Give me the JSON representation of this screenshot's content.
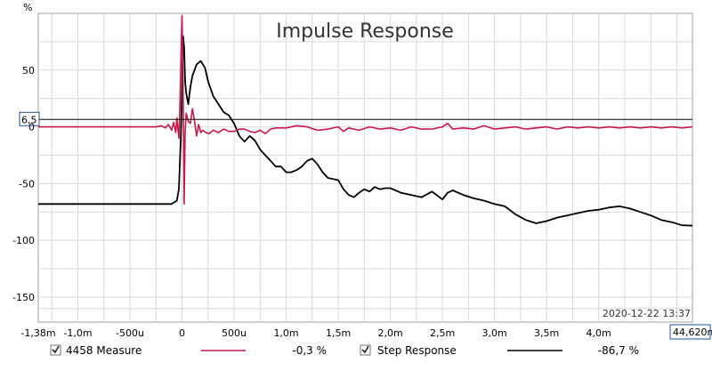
{
  "ylabel_unit": "%",
  "timestamp": "2020-12-22 13:37",
  "cursor": {
    "y_label": "6,5",
    "y_value": 6.5,
    "x_label": "44,620m"
  },
  "colors": {
    "measure": "#c8184a",
    "step": "#000000",
    "cursor_line": "#000000"
  },
  "legend": [
    {
      "checked": true,
      "name": "4458 Measure",
      "value": "-0,3 %",
      "color": "#c8184a"
    },
    {
      "checked": true,
      "name": "Step Response",
      "value": "-86,7 %",
      "color": "#000000"
    }
  ],
  "chart_data": {
    "type": "line",
    "title": "Impulse Response",
    "xlabel": "",
    "ylabel": "%",
    "xlim": [
      -1.38,
      4.9
    ],
    "ylim": [
      -172,
      100
    ],
    "grid": true,
    "y_ticks": [
      {
        "value": 50,
        "label": "50"
      },
      {
        "value": 0,
        "label": "0"
      },
      {
        "value": -50,
        "label": "-50"
      },
      {
        "value": -100,
        "label": "-100"
      },
      {
        "value": -150,
        "label": "-150"
      }
    ],
    "x_ticks": [
      {
        "value": -1.38,
        "label": "-1,38m"
      },
      {
        "value": -1.0,
        "label": "-1,0m"
      },
      {
        "value": -0.5,
        "label": "-500u"
      },
      {
        "value": 0,
        "label": "0"
      },
      {
        "value": 0.5,
        "label": "500u"
      },
      {
        "value": 1.0,
        "label": "1,0m"
      },
      {
        "value": 1.5,
        "label": "1,5m"
      },
      {
        "value": 2.0,
        "label": "2,0m"
      },
      {
        "value": 2.5,
        "label": "2,5m"
      },
      {
        "value": 3.0,
        "label": "3,0m"
      },
      {
        "value": 3.5,
        "label": "3,5m"
      },
      {
        "value": 4.0,
        "label": "4,0m"
      }
    ],
    "x_minor_grid": [
      -1.25,
      -0.75,
      -0.25,
      0.25,
      0.75,
      1.25,
      1.75,
      2.25,
      2.75,
      3.25,
      3.75,
      4.25,
      4.5,
      4.75
    ],
    "y_minor_grid": [
      75,
      25,
      -25,
      -75,
      -125,
      -160
    ],
    "series": [
      {
        "name": "4458 Measure",
        "x": [
          -1.38,
          -0.25,
          -0.2,
          -0.16,
          -0.13,
          -0.1,
          -0.08,
          -0.06,
          -0.05,
          -0.03,
          -0.02,
          -0.01,
          0.0,
          0.01,
          0.02,
          0.03,
          0.04,
          0.06,
          0.08,
          0.1,
          0.12,
          0.14,
          0.16,
          0.18,
          0.2,
          0.23,
          0.26,
          0.3,
          0.35,
          0.4,
          0.45,
          0.5,
          0.55,
          0.6,
          0.65,
          0.7,
          0.75,
          0.8,
          0.85,
          0.9,
          1.0,
          1.1,
          1.2,
          1.3,
          1.4,
          1.5,
          1.55,
          1.6,
          1.7,
          1.8,
          1.9,
          2.0,
          2.1,
          2.2,
          2.3,
          2.4,
          2.5,
          2.55,
          2.6,
          2.7,
          2.8,
          2.9,
          3.0,
          3.1,
          3.2,
          3.3,
          3.4,
          3.5,
          3.6,
          3.7,
          3.8,
          3.9,
          4.0,
          4.1,
          4.2,
          4.3,
          4.4,
          4.5,
          4.6,
          4.7,
          4.8,
          4.9
        ],
        "values": [
          0,
          0,
          1,
          -1,
          2,
          -3,
          4,
          -5,
          8,
          -10,
          20,
          60,
          98,
          40,
          -68,
          -5,
          12,
          5,
          3,
          16,
          5,
          -8,
          2,
          -5,
          -3,
          -5,
          -6,
          -3,
          -5,
          -2,
          -4,
          -4,
          -2,
          -2,
          -4,
          -5,
          -3,
          -6,
          -2,
          -1,
          -1,
          1,
          0,
          -3,
          -2,
          0,
          -4,
          -1,
          -3,
          0,
          -2,
          -1,
          -3,
          0,
          -2,
          -2,
          0,
          3,
          -2,
          -1,
          -2,
          1,
          -2,
          -1,
          0,
          -2,
          -1,
          0,
          -2,
          0,
          -1,
          0,
          -1,
          0,
          -1,
          0,
          -1,
          0,
          -1,
          0,
          -1,
          0
        ]
      },
      {
        "name": "Step Response",
        "x": [
          -1.38,
          -0.6,
          -0.1,
          -0.05,
          -0.03,
          -0.02,
          -0.01,
          0.0,
          0.01,
          0.02,
          0.03,
          0.04,
          0.06,
          0.08,
          0.1,
          0.14,
          0.18,
          0.22,
          0.25,
          0.3,
          0.35,
          0.4,
          0.45,
          0.5,
          0.55,
          0.6,
          0.65,
          0.7,
          0.75,
          0.8,
          0.85,
          0.9,
          0.95,
          1.0,
          1.05,
          1.1,
          1.15,
          1.2,
          1.25,
          1.3,
          1.35,
          1.4,
          1.5,
          1.55,
          1.6,
          1.65,
          1.7,
          1.75,
          1.8,
          1.85,
          1.9,
          1.95,
          2.0,
          2.1,
          2.2,
          2.3,
          2.4,
          2.5,
          2.55,
          2.6,
          2.7,
          2.8,
          2.9,
          3.0,
          3.1,
          3.2,
          3.3,
          3.4,
          3.5,
          3.6,
          3.7,
          3.8,
          3.9,
          4.0,
          4.1,
          4.2,
          4.3,
          4.4,
          4.5,
          4.6,
          4.7,
          4.8,
          4.9
        ],
        "values": [
          -68,
          -68,
          -68,
          -65,
          -55,
          -30,
          -5,
          30,
          80,
          70,
          40,
          30,
          20,
          35,
          45,
          55,
          58,
          52,
          40,
          27,
          20,
          13,
          10,
          3,
          -8,
          -13,
          -8,
          -12,
          -20,
          -25,
          -30,
          -35,
          -35,
          -40,
          -40,
          -38,
          -35,
          -30,
          -28,
          -33,
          -40,
          -45,
          -47,
          -55,
          -60,
          -62,
          -58,
          -55,
          -57,
          -53,
          -55,
          -54,
          -54,
          -58,
          -60,
          -62,
          -57,
          -64,
          -58,
          -56,
          -60,
          -63,
          -65,
          -68,
          -70,
          -77,
          -82,
          -85,
          -83,
          -80,
          -78,
          -76,
          -74,
          -73,
          -71,
          -70,
          -72,
          -75,
          -78,
          -82,
          -84,
          -86.7,
          -87
        ]
      }
    ]
  }
}
